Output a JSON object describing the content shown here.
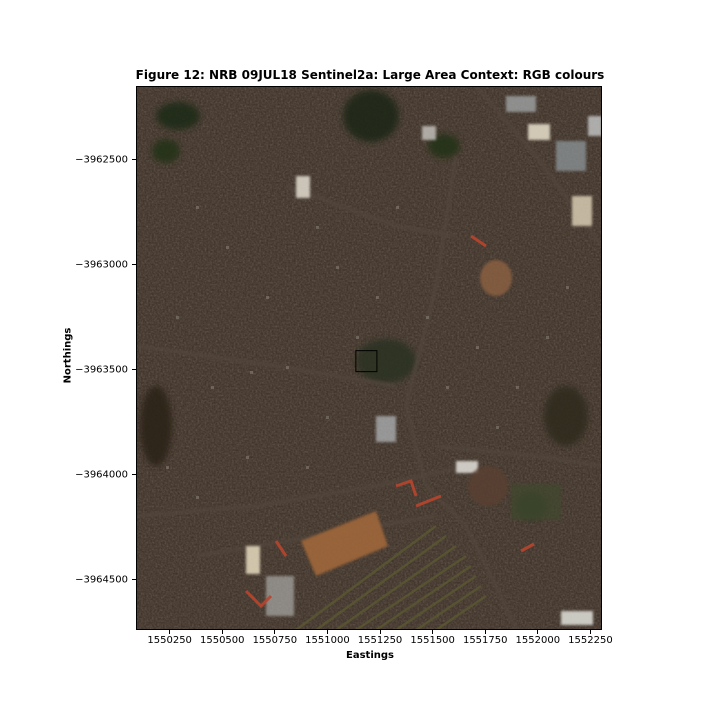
{
  "figure": {
    "title": "Figure 12: NRB 09JUL18  Sentinel2a: Large Area Context: RGB colours",
    "xlabel": "Eastings",
    "ylabel": "Northings"
  },
  "axes": {
    "xlim": [
      1550090,
      1552305
    ],
    "ylim": [
      -3964740,
      -3962150
    ],
    "xticks": [
      1550250,
      1550500,
      1550750,
      1551000,
      1551250,
      1551500,
      1551750,
      1552000,
      1552250
    ],
    "xtick_labels": [
      "1550250",
      "1550500",
      "1550750",
      "1551000",
      "1551250",
      "1551500",
      "1551750",
      "1552000",
      "1552250"
    ],
    "yticks": [
      -3962500,
      -3963000,
      -3963500,
      -3964000,
      -3964500
    ],
    "ytick_labels": [
      "−3962500",
      "−3963000",
      "−3963500",
      "−3964000",
      "−3964500"
    ]
  },
  "highlight_box": {
    "x0": 1551135,
    "x1": 1551235,
    "y0": -3963510,
    "y1": -3963410,
    "color": "#000000"
  },
  "colors": {
    "base_urban": "#3a2e25",
    "dark_vegetation": "#1f2a18",
    "bare_soil": "#a0673a",
    "red_roof": "#b8452e",
    "bright_roof": "#cfc9bd",
    "roads": "#4a4038"
  }
}
